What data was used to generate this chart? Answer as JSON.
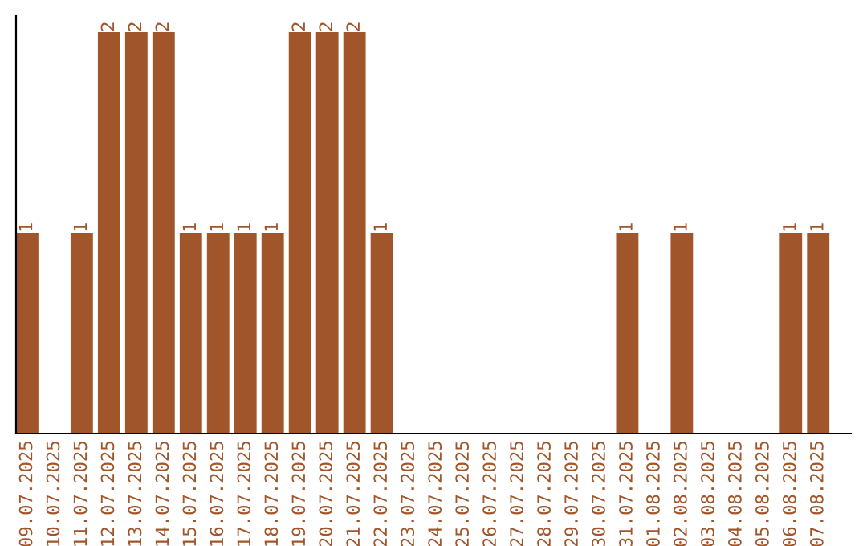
{
  "chart_data": {
    "type": "bar",
    "categories": [
      "09.07.2025",
      "10.07.2025",
      "11.07.2025",
      "12.07.2025",
      "13.07.2025",
      "14.07.2025",
      "15.07.2025",
      "16.07.2025",
      "17.07.2025",
      "18.07.2025",
      "19.07.2025",
      "20.07.2025",
      "21.07.2025",
      "22.07.2025",
      "23.07.2025",
      "24.07.2025",
      "25.07.2025",
      "26.07.2025",
      "27.07.2025",
      "28.07.2025",
      "29.07.2025",
      "30.07.2025",
      "31.07.2025",
      "01.08.2025",
      "02.08.2025",
      "03.08.2025",
      "04.08.2025",
      "05.08.2025",
      "06.08.2025",
      "07.08.2025"
    ],
    "values": [
      1,
      0,
      1,
      2,
      2,
      2,
      1,
      1,
      1,
      1,
      2,
      2,
      2,
      1,
      0,
      0,
      0,
      0,
      0,
      0,
      0,
      0,
      1,
      0,
      1,
      0,
      0,
      0,
      1,
      1
    ],
    "value_labels": [
      "1",
      null,
      "1",
      "2",
      "2",
      "2",
      "1",
      "1",
      "1",
      "1",
      "2",
      "2",
      "2",
      "1",
      null,
      null,
      null,
      null,
      null,
      null,
      null,
      null,
      "1",
      null,
      "1",
      null,
      null,
      null,
      "1",
      "1"
    ],
    "color": "#a0562a",
    "grid": false,
    "legend": false
  }
}
